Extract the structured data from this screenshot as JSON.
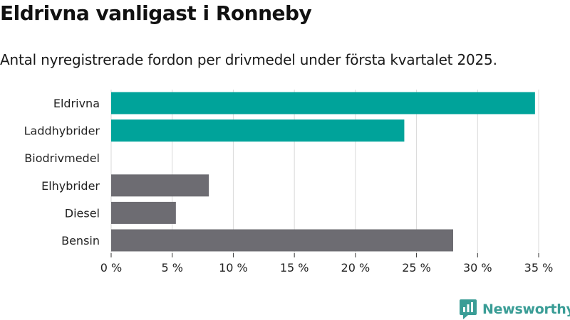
{
  "brand": {
    "name": "Newsworthy",
    "logo_icon": "newsworthy-logo-icon",
    "color": "#3a9d96"
  },
  "chart_data": {
    "type": "bar",
    "orientation": "horizontal",
    "title": "Eldrivna vanligast i Ronneby",
    "subtitle": "Antal nyregistrerade fordon per drivmedel under första kvartalet 2025.",
    "categories": [
      "Eldrivna",
      "Laddhybrider",
      "Biodrivmedel",
      "Elhybrider",
      "Diesel",
      "Bensin"
    ],
    "values": [
      34.7,
      24.0,
      0,
      8.0,
      5.3,
      28.0
    ],
    "colors": [
      "#00a39a",
      "#00a39a",
      "#00a39a",
      "#6d6c72",
      "#6d6c72",
      "#6d6c72"
    ],
    "xlim": [
      0,
      35
    ],
    "xticks": [
      0,
      5,
      10,
      15,
      20,
      25,
      30,
      35
    ],
    "xtick_labels": [
      "0 %",
      "5 %",
      "10 %",
      "15 %",
      "20 %",
      "25 %",
      "30 %",
      "35 %"
    ],
    "grid": true,
    "legend": "none"
  }
}
